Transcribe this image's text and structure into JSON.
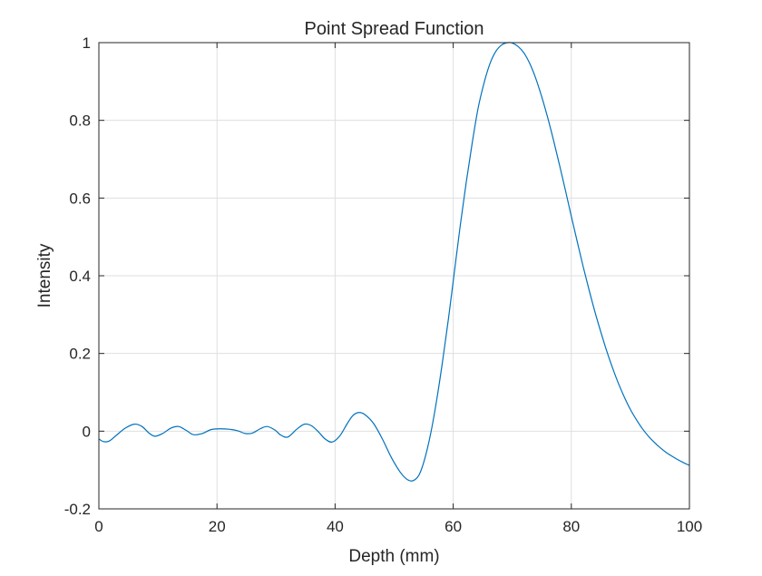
{
  "chart_data": {
    "type": "line",
    "title": "Point Spread Function",
    "xlabel": "Depth (mm)",
    "ylabel": "Intensity",
    "xlim": [
      0,
      100
    ],
    "ylim": [
      -0.2,
      1
    ],
    "xticks": [
      0,
      20,
      40,
      60,
      80,
      100
    ],
    "xtick_labels": [
      "0",
      "20",
      "40",
      "60",
      "80",
      "100"
    ],
    "yticks": [
      -0.2,
      0,
      0.2,
      0.4,
      0.6,
      0.8,
      1
    ],
    "ytick_labels": [
      "-0.2",
      "0",
      "0.2",
      "0.4",
      "0.6",
      "0.8",
      "1"
    ],
    "grid": true,
    "line_color": "#0072BD",
    "series": [
      {
        "x": [
          0,
          0.8,
          1.8,
          3,
          4.5,
          6,
          7.3,
          8.5,
          9.5,
          10.8,
          12.2,
          13.5,
          14.8,
          16,
          17.5,
          19,
          20.5,
          22,
          23.5,
          24.8,
          26,
          27.3,
          28.5,
          29.8,
          30.8,
          32,
          33.5,
          34.8,
          36,
          37.2,
          38.3,
          39.5,
          40.8,
          42,
          43,
          44,
          45,
          46.5,
          48,
          49.5,
          51,
          52,
          52.8,
          53.5,
          54.3,
          55.2,
          56.2,
          57.2,
          58.2,
          59.2,
          60.2,
          61.2,
          62.2,
          63.2,
          64.2,
          65.2,
          66.2,
          67.2,
          68.2,
          69.2,
          70,
          71,
          72,
          73,
          74,
          75,
          76,
          77,
          78,
          79,
          80,
          81,
          82,
          83,
          84,
          85,
          86,
          87,
          88,
          89,
          90,
          91,
          92,
          93,
          94,
          95,
          96,
          97,
          98,
          99,
          100
        ],
        "y": [
          -0.02,
          -0.027,
          -0.025,
          -0.01,
          0.008,
          0.018,
          0.012,
          -0.005,
          -0.013,
          -0.006,
          0.008,
          0.012,
          0.002,
          -0.009,
          -0.006,
          0.004,
          0.006,
          0.005,
          0.001,
          -0.006,
          -0.005,
          0.006,
          0.012,
          0.003,
          -0.01,
          -0.015,
          0.005,
          0.018,
          0.014,
          -0.002,
          -0.02,
          -0.028,
          -0.012,
          0.018,
          0.04,
          0.048,
          0.043,
          0.02,
          -0.02,
          -0.067,
          -0.105,
          -0.122,
          -0.128,
          -0.125,
          -0.11,
          -0.07,
          -0.005,
          0.08,
          0.18,
          0.29,
          0.41,
          0.53,
          0.64,
          0.74,
          0.83,
          0.895,
          0.945,
          0.977,
          0.994,
          1.0,
          0.999,
          0.99,
          0.973,
          0.945,
          0.907,
          0.86,
          0.807,
          0.748,
          0.685,
          0.62,
          0.553,
          0.488,
          0.424,
          0.364,
          0.307,
          0.255,
          0.206,
          0.162,
          0.122,
          0.087,
          0.056,
          0.03,
          0.007,
          -0.012,
          -0.028,
          -0.042,
          -0.054,
          -0.064,
          -0.073,
          -0.081,
          -0.088
        ]
      }
    ]
  }
}
